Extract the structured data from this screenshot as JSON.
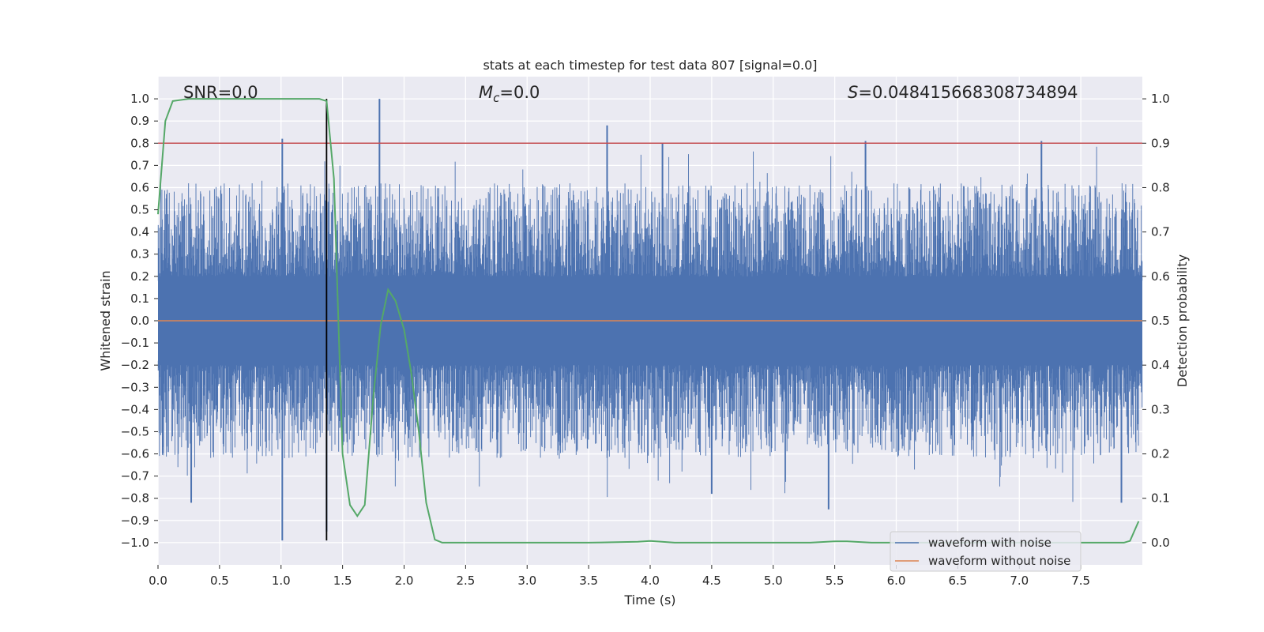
{
  "chart_data": {
    "type": "line",
    "title": "stats at each timestep for test data 807 [signal=0.0]",
    "xlabel": "Time (s)",
    "ylabel_left": "Whitened strain",
    "ylabel_right": "Detection probability",
    "xlim": [
      0.0,
      8.0
    ],
    "ylim_left": [
      -1.1,
      1.1
    ],
    "ylim_right": [
      -0.05,
      1.05
    ],
    "grid": true,
    "x_ticks": [
      "0.0",
      "0.5",
      "1.0",
      "1.5",
      "2.0",
      "2.5",
      "3.0",
      "3.5",
      "4.0",
      "4.5",
      "5.0",
      "5.5",
      "6.0",
      "6.5",
      "7.0",
      "7.5"
    ],
    "y_ticks_left": [
      "1.0",
      "0.9",
      "0.8",
      "0.7",
      "0.6",
      "0.5",
      "0.4",
      "0.3",
      "0.2",
      "0.1",
      "0.0",
      "-0.1",
      "-0.2",
      "-0.3",
      "-0.4",
      "-0.5",
      "-0.6",
      "-0.7",
      "-0.8",
      "-0.9",
      "-1.0"
    ],
    "y_ticks_right": [
      "1.0",
      "0.9",
      "0.8",
      "0.7",
      "0.6",
      "0.5",
      "0.4",
      "0.3",
      "0.2",
      "0.1",
      "0.0"
    ],
    "annotations": {
      "snr": "SNR=0.0",
      "mc_prefix": "M",
      "mc_sub": "c",
      "mc_suffix": "=0.0",
      "s_prefix": "S",
      "s_suffix": "=0.048415668308734894"
    },
    "threshold": {
      "y_right": 0.9,
      "color": "#c44e52"
    },
    "vertical_marker": {
      "x": 1.37,
      "y_from": -0.99,
      "y_to": 1.0,
      "color": "#000000"
    },
    "series": [
      {
        "name": "waveform with noise",
        "color": "#4c72b0",
        "axis": "left",
        "kind": "noise",
        "noise_extent": {
          "x_start": 0.0,
          "x_end": 8.0,
          "peak_up": 1.0,
          "peak_down": -0.99
        },
        "notable_spikes": [
          {
            "x": 1.8,
            "y": 1.0
          },
          {
            "x": 3.65,
            "y": 0.88
          },
          {
            "x": 1.01,
            "y": 0.82
          },
          {
            "x": 4.1,
            "y": 0.8
          },
          {
            "x": 5.75,
            "y": 0.81
          },
          {
            "x": 7.18,
            "y": 0.81
          },
          {
            "x": 1.01,
            "y": -0.99
          },
          {
            "x": 0.27,
            "y": -0.82
          },
          {
            "x": 5.45,
            "y": -0.85
          },
          {
            "x": 7.83,
            "y": -0.82
          },
          {
            "x": 1.37,
            "y": -0.95
          },
          {
            "x": 4.5,
            "y": -0.78
          }
        ]
      },
      {
        "name": "waveform without noise",
        "color": "#dd8452",
        "axis": "left",
        "x": [
          0.0,
          8.0
        ],
        "y": [
          0.0,
          0.0
        ]
      },
      {
        "name": "detection probability",
        "color": "#55a868",
        "axis": "right",
        "x": [
          0.0,
          0.06,
          0.12,
          0.25,
          0.5,
          0.75,
          1.0,
          1.25,
          1.31,
          1.37,
          1.43,
          1.5,
          1.56,
          1.62,
          1.68,
          1.75,
          1.81,
          1.87,
          1.93,
          2.0,
          2.06,
          2.12,
          2.18,
          2.25,
          2.31,
          2.5,
          3.0,
          3.5,
          3.9,
          4.0,
          4.2,
          4.5,
          5.0,
          5.3,
          5.5,
          5.6,
          5.8,
          6.0,
          6.5,
          7.0,
          7.5,
          7.85,
          7.9,
          7.97
        ],
        "y": [
          0.74,
          0.95,
          0.995,
          1.0,
          1.0,
          1.0,
          1.0,
          1.0,
          1.0,
          0.995,
          0.82,
          0.2,
          0.085,
          0.06,
          0.085,
          0.33,
          0.49,
          0.57,
          0.545,
          0.48,
          0.38,
          0.25,
          0.09,
          0.007,
          0.0,
          0.0,
          0.0,
          0.0,
          0.002,
          0.004,
          0.0,
          0.0,
          0.0,
          0.0,
          0.003,
          0.003,
          0.0,
          0.0,
          0.0,
          0.0,
          0.0,
          0.0,
          0.004,
          0.048
        ]
      }
    ],
    "legend": {
      "position": "lower-right",
      "entries": [
        "waveform with noise",
        "waveform without noise"
      ]
    }
  }
}
